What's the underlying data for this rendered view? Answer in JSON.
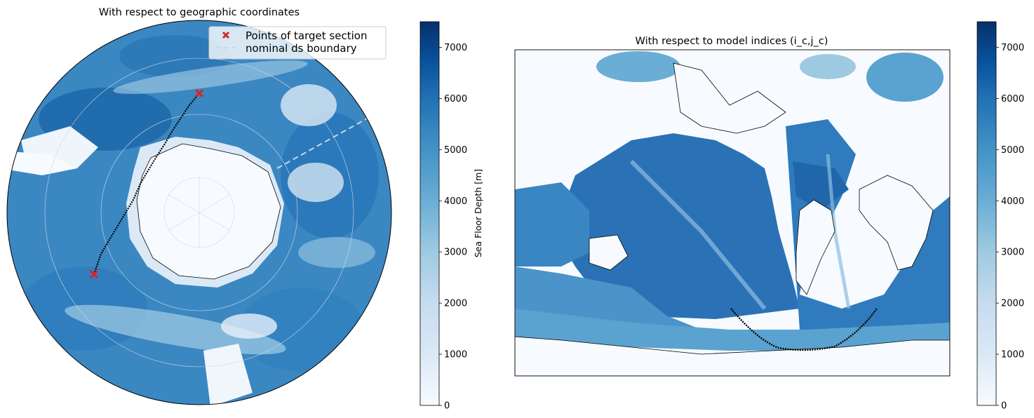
{
  "chart_data": [
    {
      "type": "heatmap",
      "projection": "south-polar-stereographic",
      "title": "With respect to geographic coordinates",
      "legend": {
        "placement": "top-right",
        "entries": [
          {
            "label": "Points of target section",
            "marker": "x",
            "color": "#d62728"
          },
          {
            "label": "nominal ds boundary",
            "style": "dashed",
            "color": "#c8d8e8"
          }
        ]
      },
      "section_endpoints": [
        {
          "name": "end-1",
          "color": "#d62728"
        },
        {
          "name": "end-2",
          "color": "#d62728"
        }
      ],
      "colorbar": {
        "label": "Sea Floor Depth [m]",
        "range": [
          0,
          7500
        ],
        "ticks": [
          "0",
          "1000",
          "2000",
          "3000",
          "4000",
          "5000",
          "6000",
          "7000"
        ],
        "colormap": "Blues"
      }
    },
    {
      "type": "heatmap",
      "projection": "model-grid",
      "title": "With respect to model indices (i_c,j_c)",
      "colorbar": {
        "label": "",
        "range": [
          0,
          7500
        ],
        "ticks": [
          "0",
          "1000",
          "2000",
          "3000",
          "4000",
          "5000",
          "6000",
          "7000"
        ],
        "colormap": "Blues"
      }
    }
  ],
  "colors": {
    "cmap_low": "#f7fbff",
    "cmap_mid": "#6baed6",
    "cmap_high": "#08306b",
    "marker": "#d62728",
    "section_line": "#000000",
    "coastline": "#000000"
  }
}
